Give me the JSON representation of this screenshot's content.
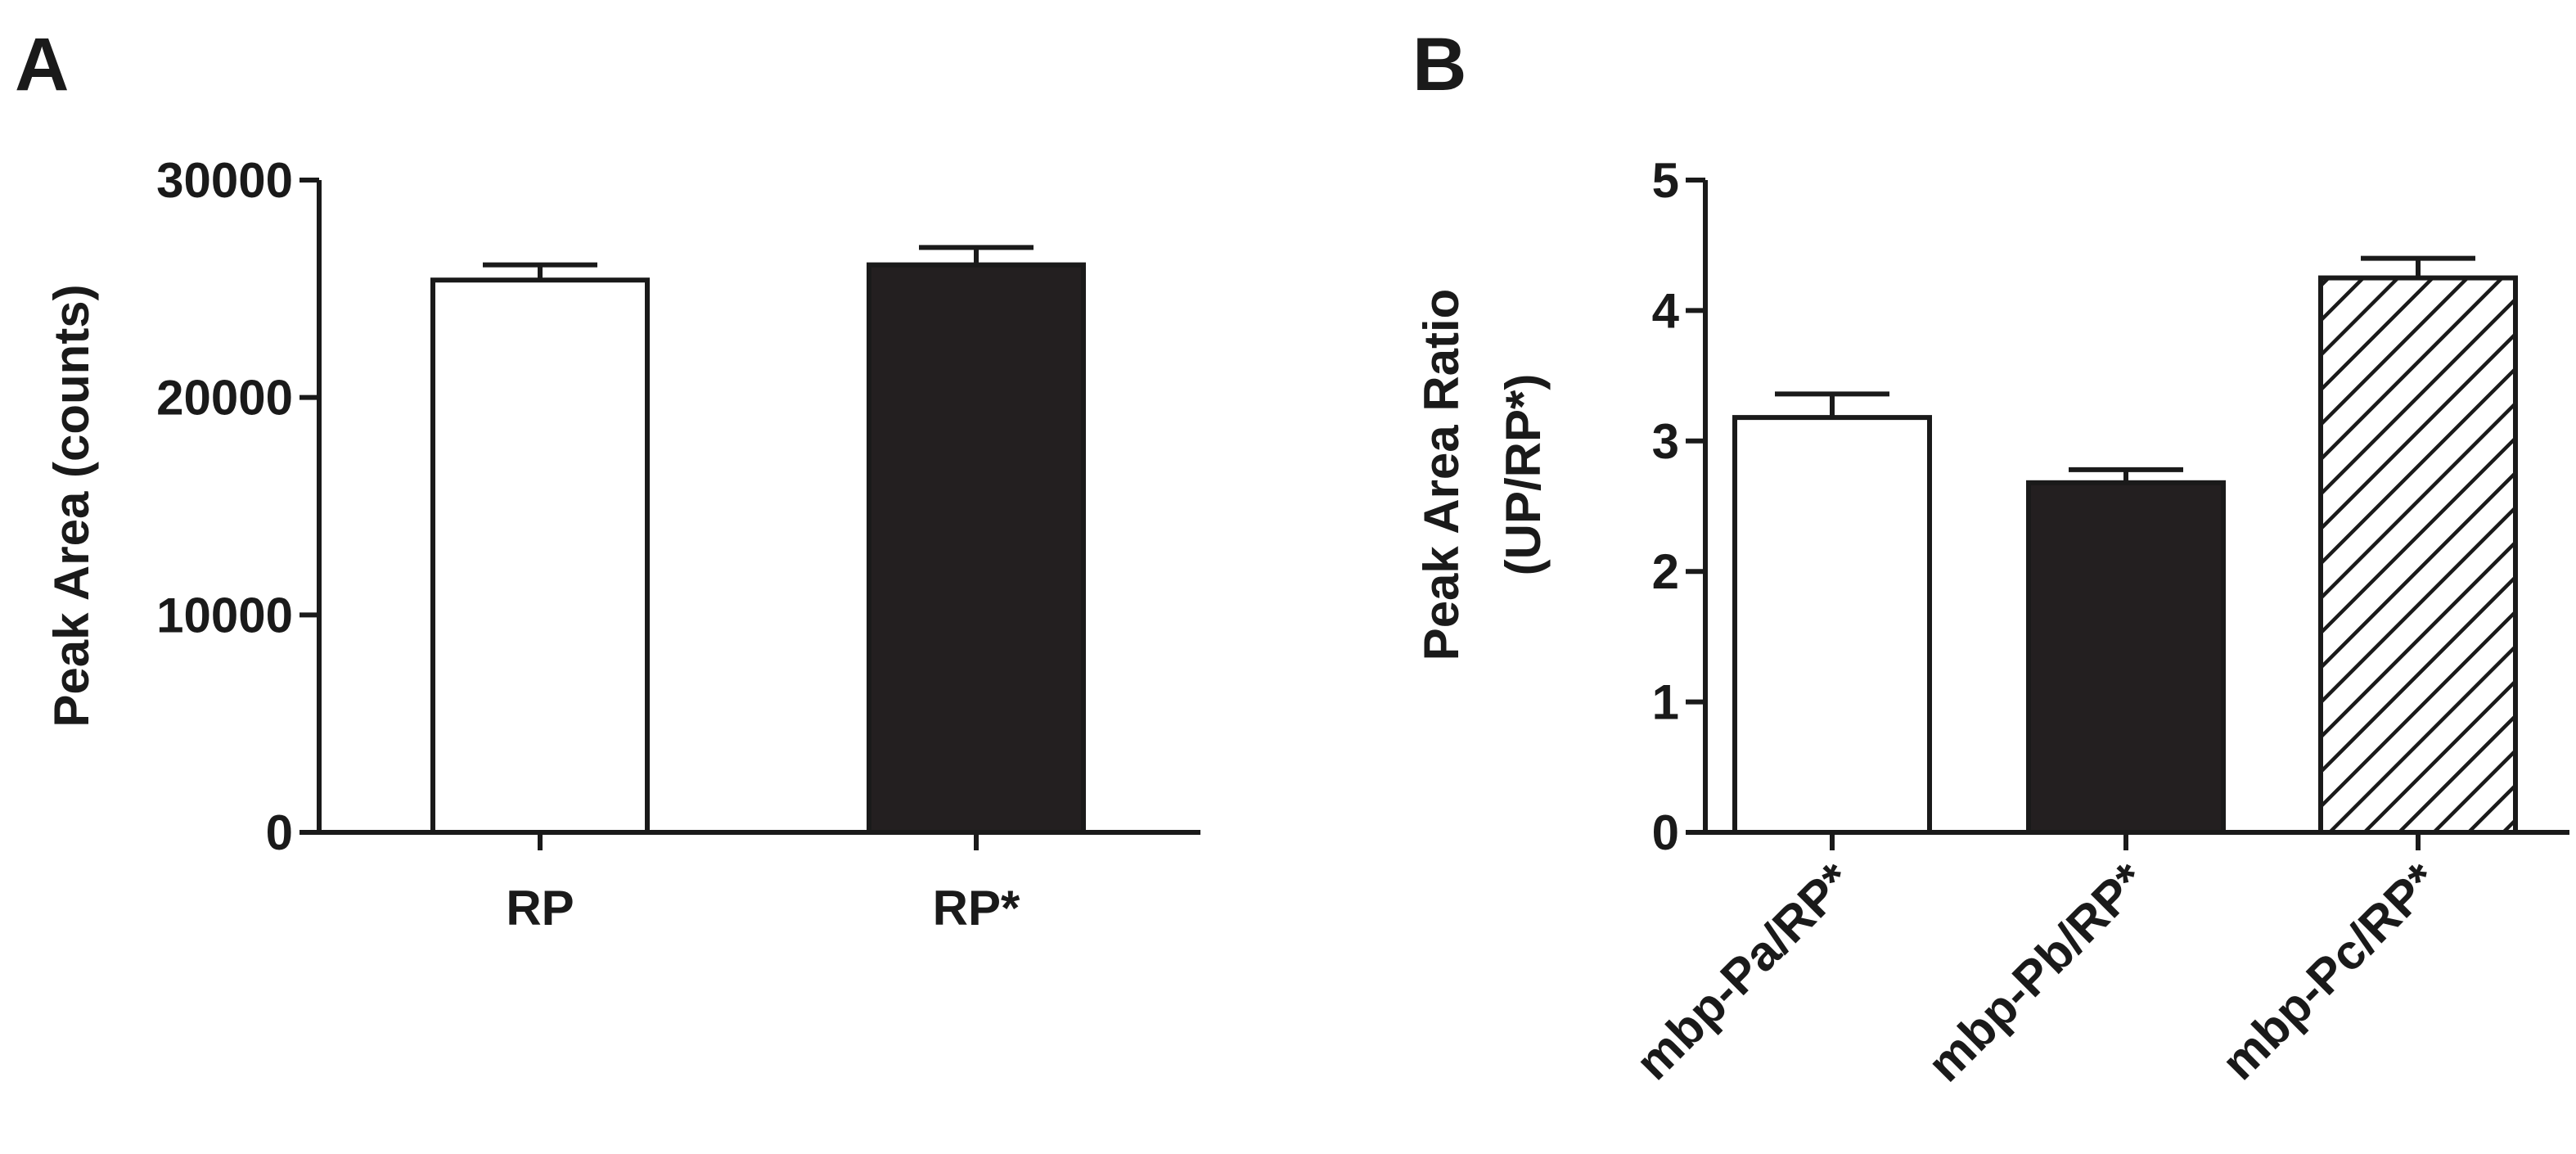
{
  "chart_data": [
    {
      "panel": "A",
      "type": "bar",
      "categories": [
        "RP",
        "RP*"
      ],
      "values": [
        25400,
        26100
      ],
      "errors": [
        700,
        800
      ],
      "fills": [
        "white",
        "black"
      ],
      "ylabel": "Peak Area (counts)",
      "xlabel": "",
      "ylim": [
        0,
        30000
      ],
      "yticks": [
        0,
        10000,
        20000,
        30000
      ],
      "ytick_labels": [
        "0",
        "10000",
        "20000",
        "30000"
      ],
      "grid": false,
      "legend": "none"
    },
    {
      "panel": "B",
      "type": "bar",
      "categories": [
        "mbp-Pa/RP*",
        "mbp-Pb/RP*",
        "mbp-Pc/RP*"
      ],
      "values": [
        3.18,
        2.68,
        4.25
      ],
      "errors": [
        0.18,
        0.1,
        0.15
      ],
      "fills": [
        "white",
        "black",
        "hatched"
      ],
      "ylabel": [
        "Peak Area Ratio",
        "(UP/RP*)"
      ],
      "xlabel": "",
      "ylim": [
        0,
        5
      ],
      "yticks": [
        0,
        1,
        2,
        3,
        4,
        5
      ],
      "ytick_labels": [
        "0",
        "1",
        "2",
        "3",
        "4",
        "5"
      ],
      "grid": false,
      "legend": "none"
    }
  ],
  "colors": {
    "ink": "#1a1a1a",
    "bar_dark": "#231f20",
    "bar_light": "#ffffff"
  }
}
